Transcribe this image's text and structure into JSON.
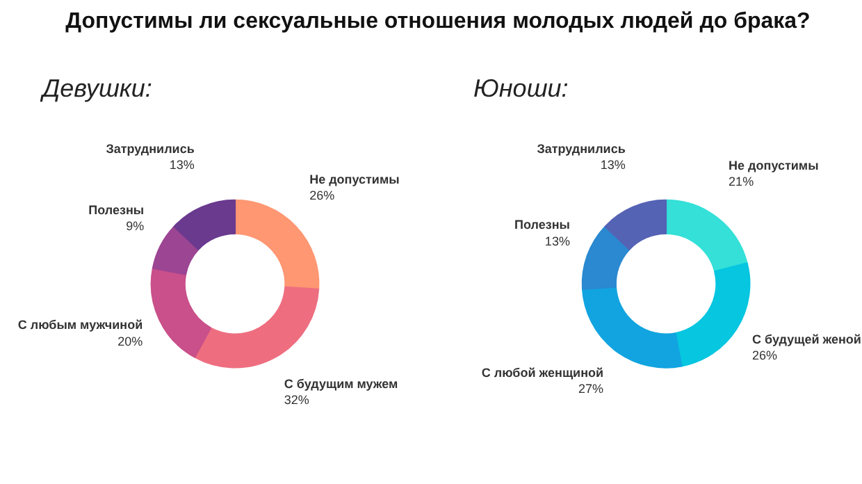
{
  "chart_data": [
    {
      "type": "donut",
      "title": "Допустимы ли сексуальные отношения молодых людей до брака?",
      "subtitle": "Девушки:",
      "categories": [
        "Не допустимы",
        "С будущим мужем",
        "С любым мужчиной",
        "Полезны",
        "Затруднились"
      ],
      "values": [
        26,
        32,
        20,
        9,
        13
      ],
      "value_labels": [
        "26%",
        "32%",
        "20%",
        "9%",
        "13%"
      ],
      "colors": [
        "#fe9772",
        "#ee6e80",
        "#c9508a",
        "#9c4593",
        "#6a3a8f"
      ]
    },
    {
      "type": "donut",
      "subtitle": "Юноши:",
      "categories": [
        "Не допустимы",
        "С будущей женой",
        "С любой женщиной",
        "Полезны",
        "Затруднились"
      ],
      "values": [
        21,
        26,
        27,
        13,
        13
      ],
      "value_labels": [
        "21%",
        "26%",
        "27%",
        "13%",
        "13%"
      ],
      "colors": [
        "#34e0d8",
        "#06c6e0",
        "#12a4e0",
        "#2a89d0",
        "#5563b5"
      ]
    }
  ]
}
